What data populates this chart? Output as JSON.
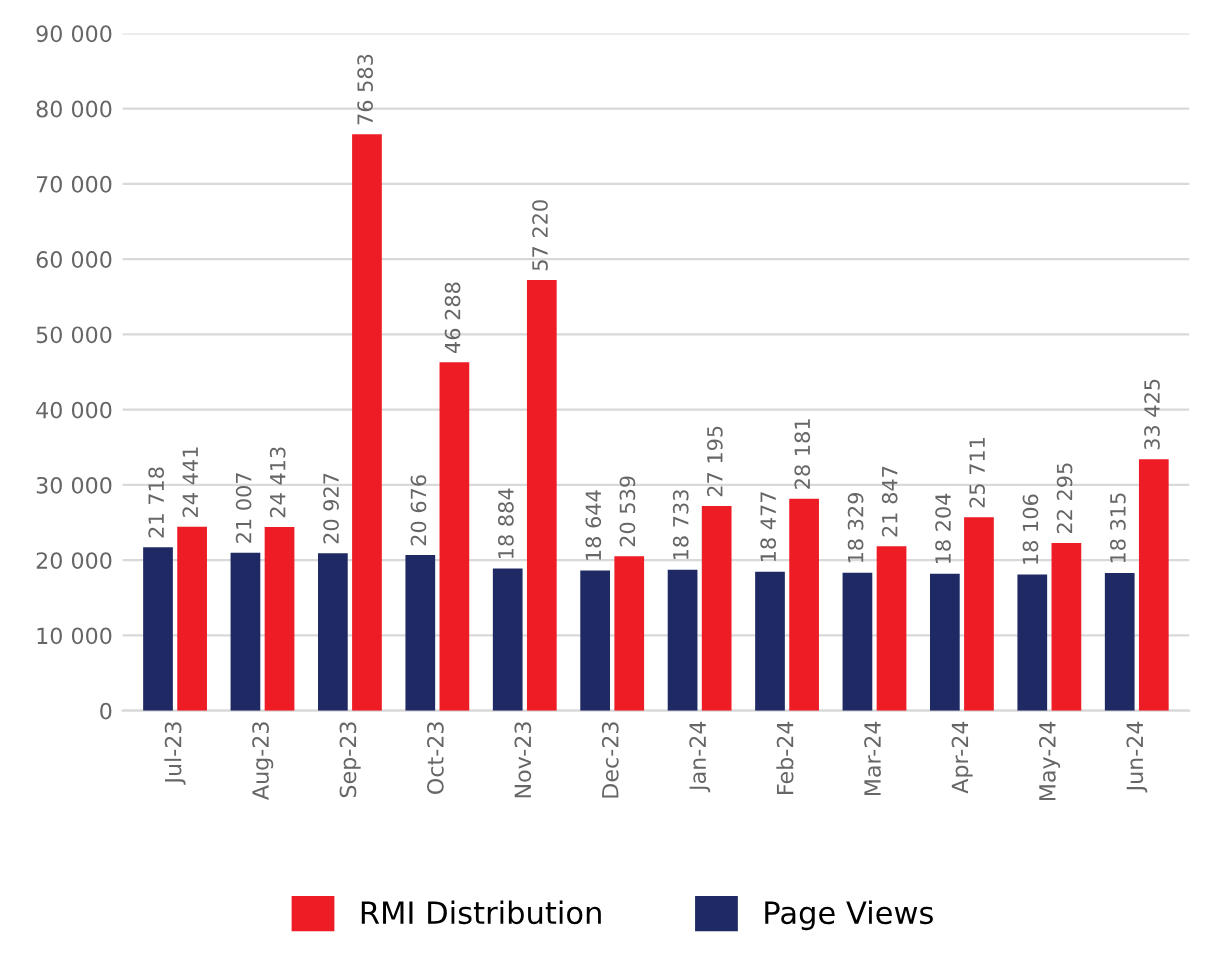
{
  "chart_data": {
    "type": "bar",
    "categories": [
      "Jul-23",
      "Aug-23",
      "Sep-23",
      "Oct-23",
      "Nov-23",
      "Dec-23",
      "Jan-24",
      "Feb-24",
      "Mar-24",
      "Apr-24",
      "May-24",
      "Jun-24"
    ],
    "series": [
      {
        "name": "Page Views",
        "color": "#1f2a64",
        "values": [
          21718,
          21007,
          20927,
          20676,
          18884,
          18644,
          18733,
          18477,
          18329,
          18204,
          18106,
          18315
        ],
        "value_labels": [
          "21 718",
          "21 007",
          "20 927",
          "20 676",
          "18 884",
          "18 644",
          "18 733",
          "18 477",
          "18 329",
          "18 204",
          "18 106",
          "18 315"
        ]
      },
      {
        "name": "RMI Distribution",
        "color": "#ee1c25",
        "values": [
          24441,
          24413,
          76583,
          46288,
          57220,
          20539,
          27195,
          28181,
          21847,
          25711,
          22295,
          33425
        ],
        "value_labels": [
          "24 441",
          "24 413",
          "76 583",
          "46 288",
          "57 220",
          "20 539",
          "27 195",
          "28 181",
          "21 847",
          "25 711",
          "22 295",
          "33 425"
        ]
      }
    ],
    "ylim": [
      0,
      90000
    ],
    "yticks": [
      0,
      {
        "value": 10000,
        "label": "10 000"
      },
      {
        "value": 20000,
        "label": "20 000"
      },
      {
        "value": 30000,
        "label": "30 000"
      },
      {
        "value": 40000,
        "label": "40 000"
      },
      {
        "value": 50000,
        "label": "50 000"
      },
      {
        "value": 60000,
        "label": "60 000"
      },
      {
        "value": 70000,
        "label": "70 000"
      },
      {
        "value": 80000,
        "label": "80 000"
      },
      {
        "value": 90000,
        "label": "90 000"
      }
    ],
    "grid": "y",
    "legend": "bottom"
  }
}
